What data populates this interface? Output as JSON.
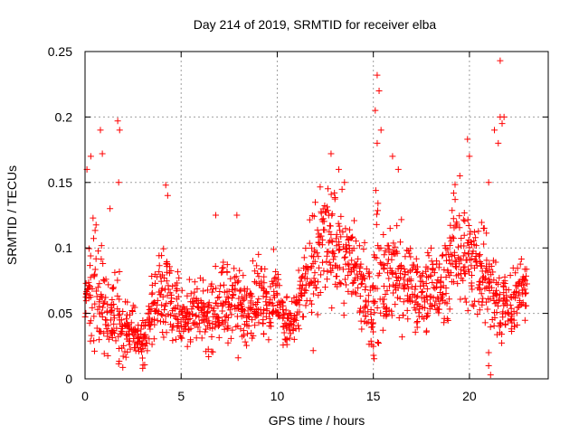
{
  "chart_data": {
    "type": "scatter",
    "title": "Day 214 of 2019, SRMTID for receiver elba",
    "xlabel": "GPS time / hours",
    "ylabel": "SRMTID / TECUs",
    "xlim": [
      0,
      24.1
    ],
    "ylim": [
      0,
      0.25
    ],
    "x_ticks": [
      0,
      5,
      10,
      15,
      20
    ],
    "y_ticks": [
      0,
      0.05,
      0.1,
      0.15,
      0.2,
      0.25
    ],
    "x_tick_labels": [
      "0",
      "5",
      "10",
      "15",
      "20"
    ],
    "y_tick_labels": [
      "0",
      "0.05",
      "0.1",
      "0.15",
      "0.2",
      "0.25"
    ],
    "grid": true,
    "marker": "+",
    "color": "#ff0000",
    "series": [
      {
        "name": "SRMTID",
        "x": [
          0.0,
          0.2,
          0.4,
          0.6,
          0.8,
          1.0,
          1.2,
          1.4,
          1.6,
          1.8,
          2.0,
          2.2,
          2.4,
          2.6,
          2.8,
          3.0,
          3.2,
          3.4,
          3.6,
          3.8,
          4.0,
          4.2,
          4.4,
          4.6,
          4.8,
          5.0,
          5.2,
          5.4,
          5.6,
          5.8,
          6.0,
          6.2,
          6.4,
          6.6,
          6.8,
          7.0,
          7.2,
          7.4,
          7.6,
          7.8,
          8.0,
          8.2,
          8.4,
          8.6,
          8.8,
          9.0,
          9.2,
          9.4,
          9.6,
          9.8,
          10.0,
          10.2,
          10.4,
          10.6,
          10.8,
          11.0,
          11.2,
          11.4,
          11.6,
          11.8,
          12.0,
          12.2,
          12.4,
          12.6,
          12.8,
          13.0,
          13.2,
          13.4,
          13.6,
          13.8,
          14.0,
          14.2,
          14.4,
          14.6,
          14.8,
          15.0,
          15.2,
          15.4,
          15.6,
          15.8,
          16.0,
          16.2,
          16.4,
          16.6,
          16.8,
          17.0,
          17.2,
          17.4,
          17.6,
          17.8,
          18.0,
          18.2,
          18.4,
          18.6,
          18.8,
          19.0,
          19.2,
          19.4,
          19.6,
          19.8,
          20.0,
          20.2,
          20.4,
          20.6,
          20.8,
          21.0,
          21.2,
          21.4,
          21.6,
          21.8,
          22.0,
          22.2,
          22.4,
          22.6,
          22.8
        ],
        "values": [
          0.055,
          0.07,
          0.062,
          0.08,
          0.058,
          0.06,
          0.05,
          0.045,
          0.06,
          0.04,
          0.035,
          0.038,
          0.04,
          0.03,
          0.032,
          0.028,
          0.035,
          0.05,
          0.055,
          0.06,
          0.065,
          0.07,
          0.06,
          0.055,
          0.06,
          0.05,
          0.045,
          0.048,
          0.052,
          0.045,
          0.05,
          0.055,
          0.048,
          0.05,
          0.055,
          0.06,
          0.062,
          0.058,
          0.06,
          0.065,
          0.05,
          0.055,
          0.06,
          0.058,
          0.06,
          0.065,
          0.062,
          0.06,
          0.058,
          0.065,
          0.06,
          0.055,
          0.04,
          0.045,
          0.045,
          0.05,
          0.06,
          0.07,
          0.075,
          0.08,
          0.09,
          0.1,
          0.11,
          0.1,
          0.095,
          0.105,
          0.1,
          0.095,
          0.09,
          0.085,
          0.09,
          0.08,
          0.07,
          0.065,
          0.06,
          0.055,
          0.09,
          0.085,
          0.08,
          0.075,
          0.08,
          0.085,
          0.075,
          0.07,
          0.075,
          0.07,
          0.065,
          0.06,
          0.065,
          0.07,
          0.075,
          0.07,
          0.065,
          0.07,
          0.08,
          0.09,
          0.1,
          0.105,
          0.1,
          0.095,
          0.09,
          0.085,
          0.085,
          0.09,
          0.08,
          0.075,
          0.07,
          0.065,
          0.06,
          0.055,
          0.05,
          0.055,
          0.06,
          0.065,
          0.07
        ],
        "spread": [
          0.02,
          0.04,
          0.06,
          0.05,
          0.04,
          0.03,
          0.03,
          0.03,
          0.04,
          0.03,
          0.02,
          0.02,
          0.025,
          0.02,
          0.02,
          0.02,
          0.02,
          0.025,
          0.03,
          0.035,
          0.04,
          0.04,
          0.03,
          0.03,
          0.03,
          0.025,
          0.025,
          0.025,
          0.025,
          0.025,
          0.025,
          0.03,
          0.03,
          0.03,
          0.03,
          0.03,
          0.035,
          0.03,
          0.03,
          0.035,
          0.03,
          0.03,
          0.03,
          0.03,
          0.03,
          0.035,
          0.03,
          0.03,
          0.03,
          0.03,
          0.025,
          0.02,
          0.02,
          0.02,
          0.02,
          0.025,
          0.03,
          0.04,
          0.045,
          0.05,
          0.05,
          0.05,
          0.05,
          0.045,
          0.045,
          0.045,
          0.04,
          0.04,
          0.04,
          0.035,
          0.04,
          0.04,
          0.04,
          0.04,
          0.03,
          0.06,
          0.07,
          0.05,
          0.04,
          0.04,
          0.04,
          0.04,
          0.04,
          0.035,
          0.035,
          0.035,
          0.03,
          0.03,
          0.03,
          0.035,
          0.035,
          0.03,
          0.03,
          0.035,
          0.04,
          0.04,
          0.045,
          0.045,
          0.045,
          0.04,
          0.04,
          0.04,
          0.045,
          0.045,
          0.045,
          0.04,
          0.035,
          0.03,
          0.03,
          0.03,
          0.025,
          0.025,
          0.025,
          0.025,
          0.025
        ]
      }
    ],
    "peaks": [
      {
        "x": 0.1,
        "y": 0.16
      },
      {
        "x": 0.3,
        "y": 0.17
      },
      {
        "x": 0.8,
        "y": 0.19
      },
      {
        "x": 0.9,
        "y": 0.172
      },
      {
        "x": 1.7,
        "y": 0.197
      },
      {
        "x": 1.8,
        "y": 0.19
      },
      {
        "x": 1.75,
        "y": 0.15
      },
      {
        "x": 1.3,
        "y": 0.13
      },
      {
        "x": 4.2,
        "y": 0.148
      },
      {
        "x": 4.3,
        "y": 0.14
      },
      {
        "x": 6.8,
        "y": 0.125
      },
      {
        "x": 7.9,
        "y": 0.125
      },
      {
        "x": 12.8,
        "y": 0.172
      },
      {
        "x": 13.2,
        "y": 0.16
      },
      {
        "x": 13.5,
        "y": 0.15
      },
      {
        "x": 15.2,
        "y": 0.232
      },
      {
        "x": 15.3,
        "y": 0.22
      },
      {
        "x": 15.1,
        "y": 0.205
      },
      {
        "x": 15.4,
        "y": 0.19
      },
      {
        "x": 15.2,
        "y": 0.18
      },
      {
        "x": 16.0,
        "y": 0.17
      },
      {
        "x": 16.3,
        "y": 0.16
      },
      {
        "x": 19.5,
        "y": 0.155
      },
      {
        "x": 19.9,
        "y": 0.183
      },
      {
        "x": 20.0,
        "y": 0.17
      },
      {
        "x": 21.0,
        "y": 0.15
      },
      {
        "x": 21.3,
        "y": 0.19
      },
      {
        "x": 21.6,
        "y": 0.2
      },
      {
        "x": 21.7,
        "y": 0.195
      },
      {
        "x": 21.8,
        "y": 0.2
      },
      {
        "x": 21.6,
        "y": 0.243
      },
      {
        "x": 21.5,
        "y": 0.18
      },
      {
        "x": 21.0,
        "y": 0.01
      },
      {
        "x": 21.1,
        "y": 0.003
      },
      {
        "x": 21.0,
        "y": 0.02
      },
      {
        "x": 3.0,
        "y": 0.008
      }
    ]
  }
}
